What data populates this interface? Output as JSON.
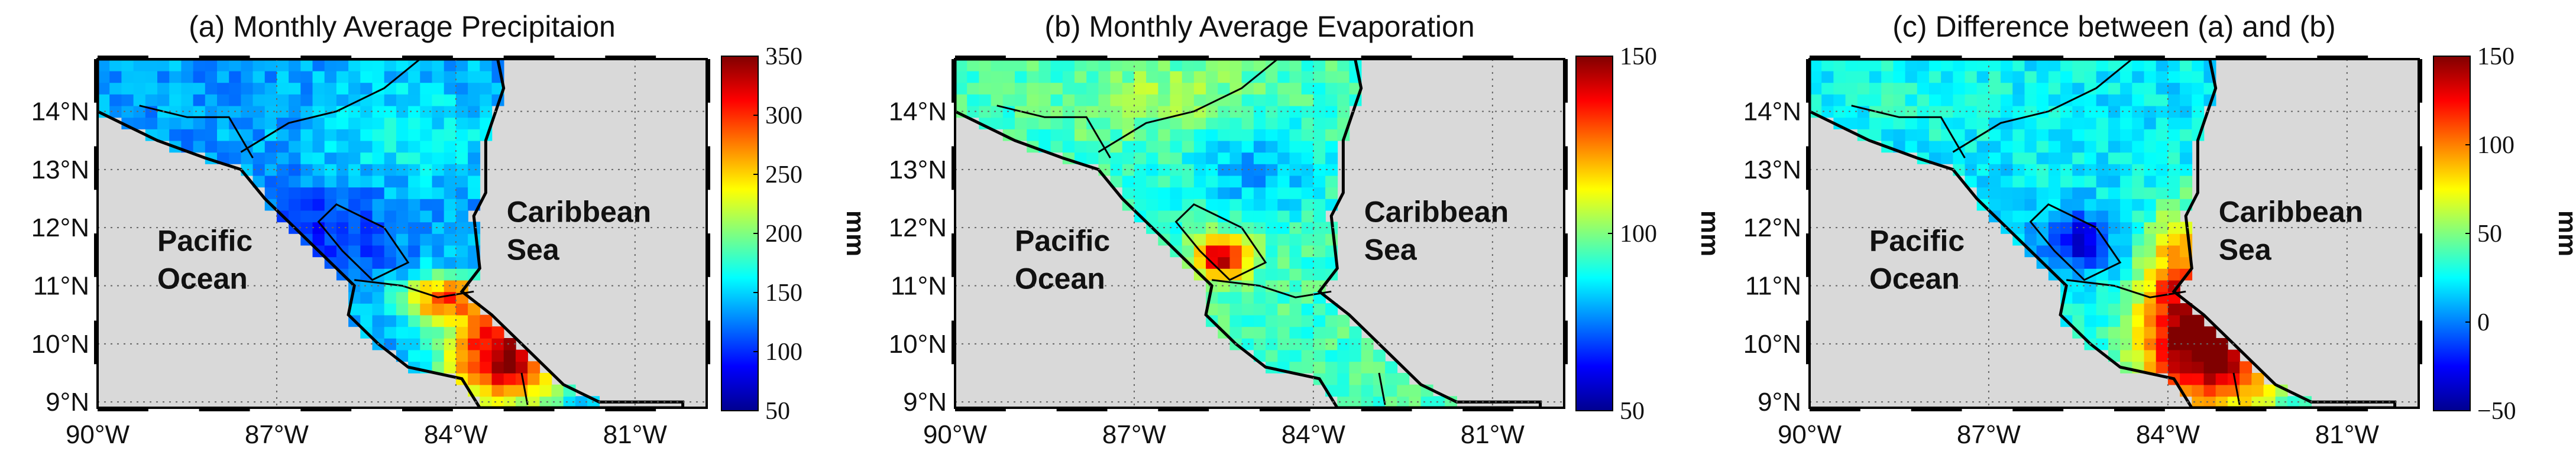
{
  "figure": {
    "panels": [
      {
        "title": "(a) Monthly Average Precipitaion",
        "colorbar": {
          "ticks": [
            "350",
            "300",
            "250",
            "200",
            "150",
            "100",
            "50"
          ],
          "label": "mm",
          "range": [
            50,
            350
          ]
        },
        "field": "precip"
      },
      {
        "title": "(b) Monthly Average Evaporation",
        "colorbar": {
          "ticks": [
            "150",
            "100",
            "50"
          ],
          "label": "mm",
          "range": [
            50,
            150
          ]
        },
        "field": "evap"
      },
      {
        "title": "(c) Difference between (a) and (b)",
        "colorbar": {
          "ticks": [
            "150",
            "100",
            "50",
            "0",
            "−50"
          ],
          "label": "mm",
          "range": [
            -50,
            150
          ]
        },
        "field": "diff"
      }
    ],
    "lat_ticks": [
      "14°N",
      "13°N",
      "12°N",
      "11°N",
      "10°N",
      "9°N"
    ],
    "lon_ticks": [
      "90°W",
      "87°W",
      "84°W",
      "81°W"
    ],
    "labels": {
      "pacific_1": "Pacific",
      "pacific_2": "Ocean",
      "caribbean_1": "Caribbean",
      "caribbean_2": "Sea"
    },
    "colors": {
      "ocean": "#d9d9d9",
      "grid": "#666666",
      "coast": "#000000"
    }
  }
}
